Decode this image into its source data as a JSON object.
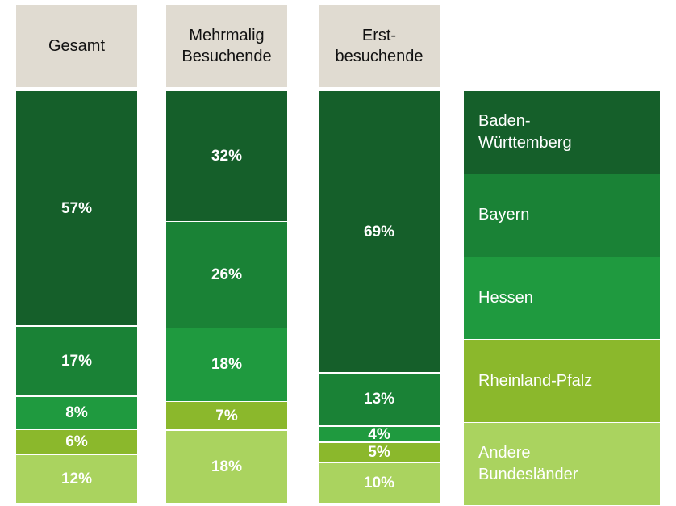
{
  "chart_data": {
    "type": "bar",
    "stacked": true,
    "categories": [
      "Gesamt",
      "Mehrmalig\nBesuchende",
      "Erst-\nbesuchende"
    ],
    "series": [
      {
        "name": "Baden-\nWürttemberg",
        "color": "#155f2a",
        "values": [
          57,
          32,
          69
        ],
        "value_labels": [
          "57%",
          "32%",
          "69%"
        ]
      },
      {
        "name": "Bayern",
        "color": "#1a8236",
        "values": [
          17,
          26,
          13
        ],
        "value_labels": [
          "17%",
          "26%",
          "13%"
        ]
      },
      {
        "name": "Hessen",
        "color": "#1f9a3f",
        "values": [
          8,
          18,
          4
        ],
        "value_labels": [
          "8%",
          "18%",
          "4%"
        ]
      },
      {
        "name": "Rheinland-Pfalz",
        "color": "#8bb82c",
        "values": [
          6,
          7,
          5
        ],
        "value_labels": [
          "6%",
          "7%",
          "5%"
        ]
      },
      {
        "name": "Andere\nBundesländer",
        "color": "#aad35f",
        "values": [
          12,
          18,
          10
        ],
        "value_labels": [
          "12%",
          "18%",
          "10%"
        ]
      }
    ]
  }
}
